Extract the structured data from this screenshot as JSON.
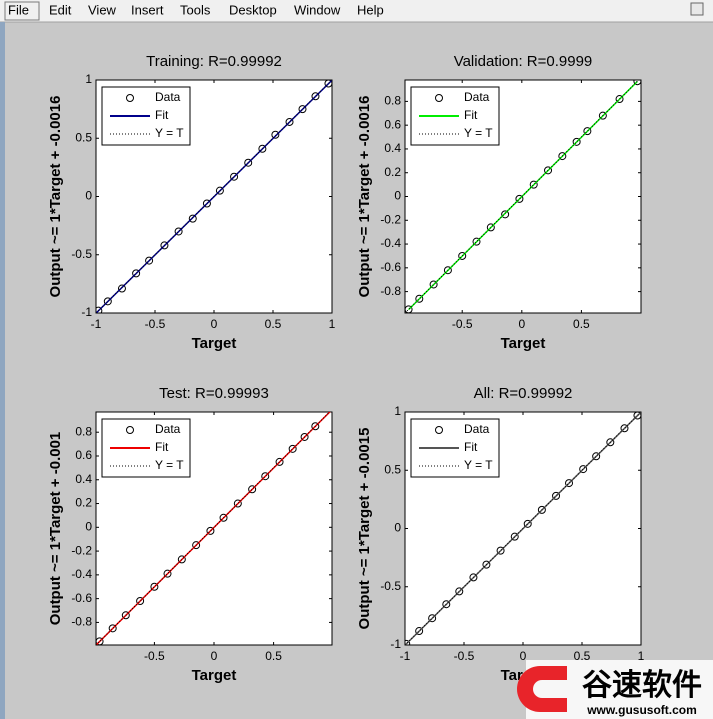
{
  "menu": [
    "File",
    "Edit",
    "View",
    "Insert",
    "Tools",
    "Desktop",
    "Window",
    "Help"
  ],
  "watermark": {
    "brand": "谷速软件",
    "url": "www.gususoft.com"
  },
  "chart_data": [
    {
      "type": "scatter",
      "title": "Training: R=0.99992",
      "x_label": "Target",
      "y_label": "Output ~= 1*Target + -0.0016",
      "xlim": [
        -1,
        1
      ],
      "ylim": [
        -1,
        1
      ],
      "xticks": [
        -1,
        -0.5,
        0,
        0.5,
        1
      ],
      "yticks": [
        -1,
        -0.5,
        0,
        0.5,
        1
      ],
      "series": [
        {
          "name": "Data",
          "color": "#000000",
          "x": [
            -0.98,
            -0.9,
            -0.78,
            -0.66,
            -0.55,
            -0.42,
            -0.3,
            -0.18,
            -0.06,
            0.05,
            0.17,
            0.29,
            0.41,
            0.52,
            0.64,
            0.75,
            0.86,
            0.97
          ],
          "values": [
            -0.98,
            -0.9,
            -0.79,
            -0.66,
            -0.55,
            -0.42,
            -0.3,
            -0.19,
            -0.06,
            0.05,
            0.17,
            0.29,
            0.41,
            0.53,
            0.64,
            0.75,
            0.86,
            0.97
          ]
        },
        {
          "name": "Fit",
          "color": "#00008b",
          "x": [
            -1,
            1
          ],
          "values": [
            -1.0016,
            0.9984
          ]
        },
        {
          "name": "Y = T",
          "color": "#000000",
          "x": [
            -1,
            1
          ],
          "values": [
            -1,
            1
          ]
        }
      ]
    },
    {
      "type": "scatter",
      "title": "Validation: R=0.9999",
      "x_label": "Target",
      "y_label": "Output ~= 1*Target + -0.0016",
      "xlim": [
        -0.98,
        1
      ],
      "ylim": [
        -0.98,
        0.98
      ],
      "xticks": [
        -0.5,
        0,
        0.5
      ],
      "yticks": [
        -0.8,
        -0.6,
        -0.4,
        -0.2,
        0,
        0.2,
        0.4,
        0.6,
        0.8
      ],
      "series": [
        {
          "name": "Data",
          "color": "#000000",
          "x": [
            -0.95,
            -0.86,
            -0.74,
            -0.62,
            -0.5,
            -0.38,
            -0.26,
            -0.14,
            -0.02,
            0.1,
            0.22,
            0.34,
            0.46,
            0.55,
            0.68,
            0.82,
            0.97
          ],
          "values": [
            -0.95,
            -0.86,
            -0.74,
            -0.62,
            -0.5,
            -0.38,
            -0.26,
            -0.15,
            -0.02,
            0.1,
            0.22,
            0.34,
            0.46,
            0.55,
            0.68,
            0.82,
            0.97
          ]
        },
        {
          "name": "Fit",
          "color": "#00ee00",
          "x": [
            -0.95,
            0.97
          ],
          "values": [
            -0.9516,
            0.9684
          ]
        },
        {
          "name": "Y = T",
          "color": "#000000",
          "x": [
            -0.98,
            0.98
          ],
          "values": [
            -0.98,
            0.98
          ]
        }
      ]
    },
    {
      "type": "scatter",
      "title": "Test: R=0.99993",
      "x_label": "Target",
      "y_label": "Output ~= 1*Target + -0.001",
      "xlim": [
        -0.99,
        0.99
      ],
      "ylim": [
        -0.99,
        0.97
      ],
      "xticks": [
        -0.5,
        0,
        0.5
      ],
      "yticks": [
        -0.8,
        -0.6,
        -0.4,
        -0.2,
        0,
        0.2,
        0.4,
        0.6,
        0.8
      ],
      "series": [
        {
          "name": "Data",
          "color": "#000000",
          "x": [
            -0.96,
            -0.85,
            -0.74,
            -0.62,
            -0.5,
            -0.39,
            -0.27,
            -0.15,
            -0.03,
            0.08,
            0.2,
            0.32,
            0.43,
            0.55,
            0.66,
            0.76,
            0.85
          ],
          "values": [
            -0.96,
            -0.85,
            -0.74,
            -0.62,
            -0.5,
            -0.39,
            -0.27,
            -0.15,
            -0.03,
            0.08,
            0.2,
            0.32,
            0.43,
            0.55,
            0.66,
            0.76,
            0.85
          ]
        },
        {
          "name": "Fit",
          "color": "#ee0000",
          "x": [
            -0.99,
            0.99
          ],
          "values": [
            -0.991,
            0.989
          ]
        },
        {
          "name": "Y = T",
          "color": "#000000",
          "x": [
            -0.99,
            0.99
          ],
          "values": [
            -0.99,
            0.99
          ]
        }
      ]
    },
    {
      "type": "scatter",
      "title": "All: R=0.99992",
      "x_label": "Target",
      "y_label": "Output ~= 1*Target + -0.0015",
      "xlim": [
        -1,
        1
      ],
      "ylim": [
        -1,
        1
      ],
      "xticks": [
        -1,
        -0.5,
        0,
        0.5,
        1
      ],
      "yticks": [
        -1,
        -0.5,
        0,
        0.5,
        1
      ],
      "series": [
        {
          "name": "Data",
          "color": "#000000",
          "x": [
            -0.99,
            -0.88,
            -0.77,
            -0.65,
            -0.54,
            -0.42,
            -0.31,
            -0.19,
            -0.07,
            0.04,
            0.16,
            0.28,
            0.39,
            0.51,
            0.62,
            0.74,
            0.86,
            0.97
          ],
          "values": [
            -0.99,
            -0.88,
            -0.77,
            -0.65,
            -0.54,
            -0.42,
            -0.31,
            -0.19,
            -0.07,
            0.04,
            0.16,
            0.28,
            0.39,
            0.51,
            0.62,
            0.74,
            0.86,
            0.97
          ]
        },
        {
          "name": "Fit",
          "color": "#555555",
          "x": [
            -1,
            1
          ],
          "values": [
            -1.0015,
            0.9985
          ]
        },
        {
          "name": "Y = T",
          "color": "#000000",
          "x": [
            -1,
            1
          ],
          "values": [
            -1,
            1
          ]
        }
      ]
    }
  ]
}
